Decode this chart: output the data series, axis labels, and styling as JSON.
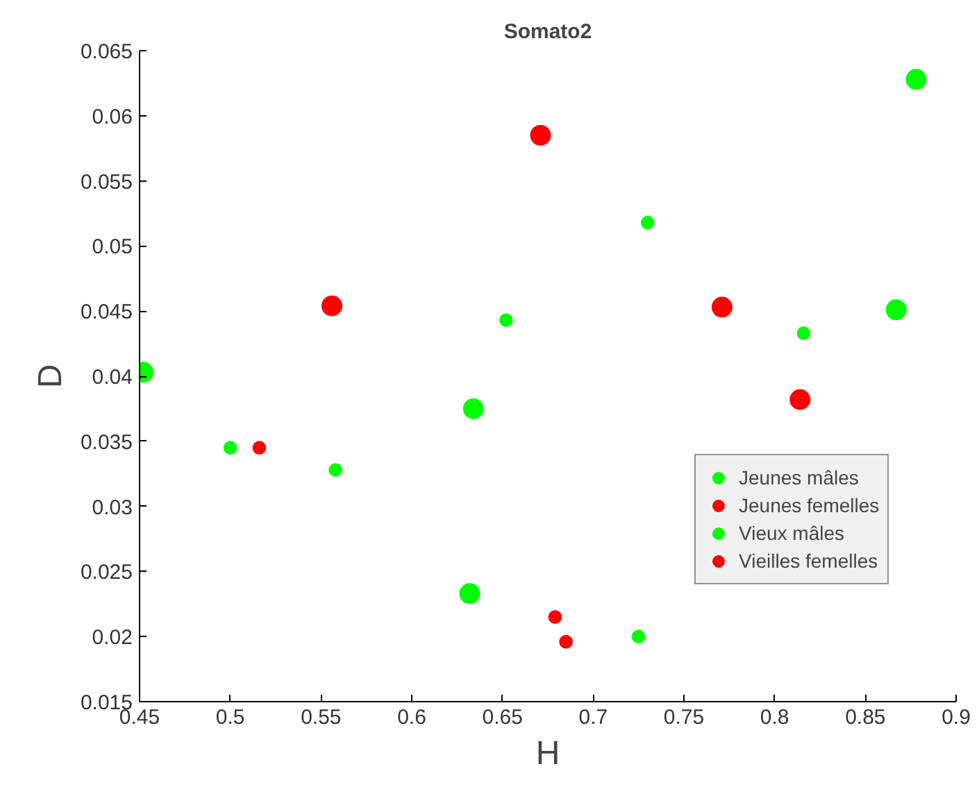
{
  "chart_data": {
    "type": "bubble",
    "title": "Somato2",
    "xlabel": "H",
    "ylabel": "D",
    "xlim": [
      0.45,
      0.9
    ],
    "xticks": [
      0.45,
      0.5,
      0.55,
      0.6,
      0.65,
      0.7,
      0.75,
      0.8,
      0.85,
      0.9
    ],
    "ylim": [
      0.015,
      0.065
    ],
    "yticks": [
      0.015,
      0.02,
      0.025,
      0.03,
      0.035,
      0.04,
      0.045,
      0.05,
      0.055,
      0.06,
      0.065
    ],
    "grid": false,
    "legend": "right",
    "marker": "circle",
    "series": [
      {
        "name": "Jeunes mâles",
        "color": "#00ff00",
        "x": [
          0.5,
          0.558,
          0.652,
          0.73,
          0.725,
          0.816
        ],
        "values": [
          0.0345,
          0.0328,
          0.0443,
          0.0518,
          0.02,
          0.0433
        ],
        "sizes": [
          0.4,
          0.4,
          0.4,
          0.4,
          0.4,
          0.4
        ]
      },
      {
        "name": "Jeunes femelles",
        "color": "#ff0000",
        "x": [
          0.516,
          0.679,
          0.685
        ],
        "values": [
          0.0345,
          0.0215,
          0.0196
        ],
        "sizes": [
          0.4,
          0.4,
          0.4
        ]
      },
      {
        "name": "Vieux mâles",
        "color": "#00ff00",
        "x": [
          0.452,
          0.634,
          0.632,
          0.867,
          0.878
        ],
        "values": [
          0.0403,
          0.0375,
          0.0233,
          0.0451,
          0.0628
        ],
        "sizes": [
          1,
          1,
          1,
          1,
          1
        ]
      },
      {
        "name": "Vieilles femelles",
        "color": "#ff0000",
        "x": [
          0.556,
          0.671,
          0.771,
          0.814
        ],
        "values": [
          0.0454,
          0.0585,
          0.0453,
          0.0382
        ],
        "sizes": [
          1,
          1,
          1,
          1
        ]
      }
    ]
  }
}
